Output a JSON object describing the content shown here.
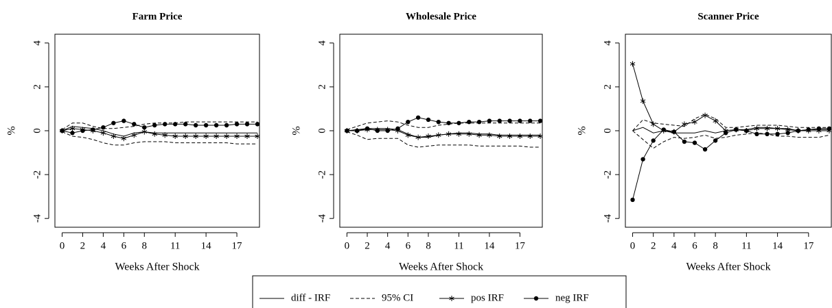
{
  "chart_data": [
    {
      "type": "line",
      "title": "Farm Price",
      "xlabel": "Weeks After Shock",
      "ylabel": "%",
      "x": [
        0,
        1,
        2,
        3,
        4,
        5,
        6,
        7,
        8,
        9,
        10,
        11,
        12,
        13,
        14,
        15,
        16,
        17,
        18,
        19
      ],
      "xlim": [
        -0.7,
        19.2
      ],
      "xticks": [
        0,
        2,
        4,
        6,
        8,
        11,
        14,
        17
      ],
      "ylim": [
        -4.4,
        4.4
      ],
      "yticks": [
        -4,
        -2,
        0,
        2,
        4
      ],
      "series": [
        {
          "line": "solid",
          "values": [
            0,
            0.2,
            0.15,
            0.1,
            0,
            -0.15,
            -0.25,
            -0.1,
            -0.05,
            -0.1,
            -0.1,
            -0.1,
            -0.1,
            -0.1,
            -0.1,
            -0.1,
            -0.1,
            -0.1,
            -0.1,
            -0.1
          ]
        },
        {
          "line": "dashed",
          "lower": [
            -0.05,
            -0.25,
            -0.3,
            -0.4,
            -0.55,
            -0.65,
            -0.65,
            -0.55,
            -0.5,
            -0.5,
            -0.5,
            -0.55,
            -0.55,
            -0.55,
            -0.55,
            -0.55,
            -0.55,
            -0.6,
            -0.6,
            -0.6
          ],
          "upper": [
            0.05,
            0.35,
            0.35,
            0.2,
            0.1,
            0.1,
            0.15,
            0.2,
            0.3,
            0.35,
            0.35,
            0.35,
            0.4,
            0.4,
            0.4,
            0.4,
            0.4,
            0.4,
            0.4,
            0.4
          ]
        },
        {
          "line": "solid",
          "marker": "star",
          "values": [
            0,
            0.1,
            0.05,
            0,
            -0.1,
            -0.25,
            -0.35,
            -0.2,
            -0.05,
            -0.15,
            -0.2,
            -0.25,
            -0.25,
            -0.25,
            -0.25,
            -0.25,
            -0.25,
            -0.25,
            -0.25,
            -0.25
          ]
        },
        {
          "line": "solid",
          "marker": "dot",
          "values": [
            0,
            -0.1,
            0,
            0.05,
            0.15,
            0.35,
            0.45,
            0.3,
            0.15,
            0.25,
            0.3,
            0.3,
            0.3,
            0.25,
            0.25,
            0.25,
            0.25,
            0.3,
            0.3,
            0.3
          ]
        }
      ]
    },
    {
      "type": "line",
      "title": "Wholesale Price",
      "xlabel": "Weeks After Shock",
      "ylabel": "%",
      "x": [
        0,
        1,
        2,
        3,
        4,
        5,
        6,
        7,
        8,
        9,
        10,
        11,
        12,
        13,
        14,
        15,
        16,
        17,
        18,
        19
      ],
      "xlim": [
        -0.7,
        19.2
      ],
      "xticks": [
        0,
        2,
        4,
        6,
        8,
        11,
        14,
        17
      ],
      "ylim": [
        -4.4,
        4.4
      ],
      "yticks": [
        -4,
        -2,
        0,
        2,
        4
      ],
      "series": [
        {
          "line": "solid",
          "values": [
            0,
            0.05,
            0.1,
            0.1,
            0.1,
            0.05,
            -0.15,
            -0.3,
            -0.3,
            -0.2,
            -0.15,
            -0.1,
            -0.1,
            -0.15,
            -0.15,
            -0.2,
            -0.2,
            -0.2,
            -0.2,
            -0.2
          ]
        },
        {
          "line": "dashed",
          "lower": [
            -0.05,
            -0.2,
            -0.4,
            -0.35,
            -0.35,
            -0.35,
            -0.65,
            -0.75,
            -0.7,
            -0.65,
            -0.65,
            -0.65,
            -0.65,
            -0.7,
            -0.7,
            -0.7,
            -0.7,
            -0.7,
            -0.75,
            -0.75
          ],
          "upper": [
            0.05,
            0.2,
            0.35,
            0.4,
            0.45,
            0.4,
            0.25,
            0.15,
            0.15,
            0.25,
            0.3,
            0.35,
            0.35,
            0.35,
            0.35,
            0.35,
            0.35,
            0.35,
            0.35,
            0.35
          ]
        },
        {
          "line": "solid",
          "marker": "star",
          "values": [
            0,
            0,
            0.05,
            0.05,
            0.05,
            0,
            -0.2,
            -0.3,
            -0.25,
            -0.2,
            -0.15,
            -0.15,
            -0.15,
            -0.2,
            -0.2,
            -0.25,
            -0.25,
            -0.25,
            -0.25,
            -0.25
          ]
        },
        {
          "line": "solid",
          "marker": "dot",
          "values": [
            0,
            0,
            0.1,
            0,
            0,
            0.1,
            0.4,
            0.6,
            0.5,
            0.4,
            0.35,
            0.35,
            0.4,
            0.4,
            0.45,
            0.45,
            0.45,
            0.45,
            0.45,
            0.45
          ]
        }
      ]
    },
    {
      "type": "line",
      "title": "Scanner Price",
      "xlabel": "Weeks After Shock",
      "ylabel": "%",
      "x": [
        0,
        1,
        2,
        3,
        4,
        5,
        6,
        7,
        8,
        9,
        10,
        11,
        12,
        13,
        14,
        15,
        16,
        17,
        18,
        19
      ],
      "xlim": [
        -0.7,
        19.2
      ],
      "xticks": [
        0,
        2,
        4,
        6,
        8,
        11,
        14,
        17
      ],
      "ylim": [
        -4.4,
        4.4
      ],
      "yticks": [
        -4,
        -2,
        0,
        2,
        4
      ],
      "series": [
        {
          "line": "solid",
          "values": [
            0,
            0.15,
            -0.1,
            0,
            -0.1,
            -0.1,
            -0.1,
            0,
            -0.1,
            0,
            0.05,
            0.05,
            0.15,
            0.15,
            0.1,
            0.1,
            0,
            0.05,
            0.05,
            0.05
          ]
        },
        {
          "line": "dashed",
          "lower": [
            0,
            -0.4,
            -0.8,
            -0.5,
            -0.3,
            -0.35,
            -0.3,
            -0.2,
            -0.35,
            -0.3,
            -0.2,
            -0.15,
            -0.1,
            -0.15,
            -0.25,
            -0.25,
            -0.3,
            -0.3,
            -0.3,
            -0.2
          ],
          "upper": [
            0,
            0.5,
            0.35,
            0.3,
            0.25,
            0.2,
            0.55,
            0.75,
            0.55,
            0.15,
            0.15,
            0.2,
            0.25,
            0.25,
            0.25,
            0.2,
            0.15,
            0.15,
            0.15,
            0.15
          ]
        },
        {
          "line": "solid",
          "marker": "star",
          "values": [
            3.05,
            1.35,
            0.3,
            0,
            -0.05,
            0.3,
            0.4,
            0.7,
            0.45,
            0,
            0.05,
            0,
            0.1,
            0.1,
            0.1,
            0.05,
            0,
            0,
            0,
            0
          ]
        },
        {
          "line": "solid",
          "marker": "dot",
          "values": [
            -3.15,
            -1.3,
            -0.45,
            0.05,
            -0.05,
            -0.5,
            -0.55,
            -0.85,
            -0.45,
            -0.1,
            0.05,
            0,
            -0.15,
            -0.15,
            -0.15,
            -0.1,
            0,
            0.05,
            0.1,
            0.1
          ]
        }
      ]
    }
  ],
  "legend": [
    {
      "name": "diff - IRF",
      "line": "solid"
    },
    {
      "name": "95% CI",
      "line": "dashed"
    },
    {
      "name": "pos IRF",
      "line": "solid",
      "marker": "star"
    },
    {
      "name": "neg IRF",
      "line": "solid",
      "marker": "dot"
    }
  ]
}
